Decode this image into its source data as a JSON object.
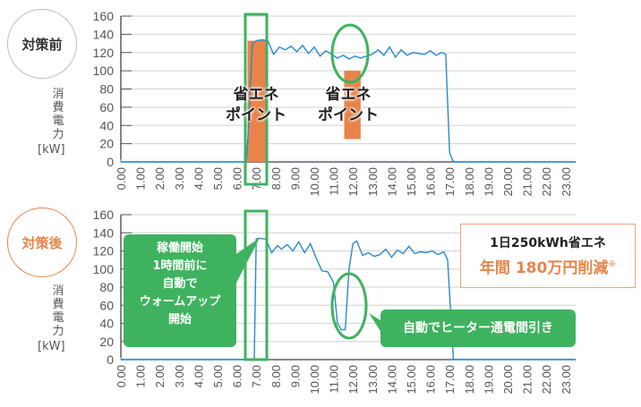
{
  "top_panel": {
    "badge": "対策前",
    "badge_color": "#333333",
    "badge_border": "#bbbbbb",
    "ylabel_chars": [
      "消",
      "費",
      "電",
      "力"
    ],
    "unit": "[kW]",
    "point_label_1": [
      "省エネ",
      "ポイント"
    ],
    "point_label_2": [
      "省エネ",
      "ポイント"
    ]
  },
  "bottom_panel": {
    "badge": "対策後",
    "badge_color": "#e8844a",
    "badge_border": "#e8844a",
    "ylabel_chars": [
      "消",
      "費",
      "電",
      "力"
    ],
    "unit": "[kW]",
    "warmup_callout": [
      "稼働開始",
      "1時間前に",
      "自動で",
      "ウォームアップ",
      "開始"
    ],
    "heater_callout": "自動でヒーター通電間引き"
  },
  "savings_box": {
    "line1": "1日250kWh省エネ",
    "line2": "年間 180万円削減",
    "note_mark": "※"
  },
  "colors": {
    "line": "#2a8ac8",
    "highlight_orange": "#e8844a",
    "highlight_green": "#3fb25f",
    "grid": "#d9d9d9"
  },
  "chart_data": [
    {
      "type": "line",
      "title": "対策前",
      "xlabel": "",
      "ylabel": "消費電力 [kW]",
      "ylim": [
        0,
        160
      ],
      "yticks": [
        0,
        20,
        40,
        60,
        80,
        100,
        120,
        140,
        160
      ],
      "grid": true,
      "categories": [
        "0.00",
        "1.00",
        "2.00",
        "3.00",
        "4.00",
        "5.00",
        "6.00",
        "7.00",
        "8.00",
        "9.00",
        "10.00",
        "11.00",
        "12.00",
        "13.00",
        "14.00",
        "15.00",
        "16.00",
        "17.00",
        "18.00",
        "19.00",
        "20.00",
        "21.00",
        "22.00",
        "23.00"
      ],
      "series": [
        {
          "name": "消費電力",
          "x": [
            0,
            6.5,
            6.6,
            6.8,
            7.0,
            7.3,
            7.6,
            7.9,
            8.2,
            8.5,
            8.8,
            9.1,
            9.4,
            9.7,
            10.0,
            10.3,
            10.6,
            10.9,
            11.2,
            11.5,
            11.8,
            12.1,
            12.4,
            12.7,
            13.0,
            13.3,
            13.6,
            13.9,
            14.2,
            14.5,
            14.8,
            15.1,
            15.4,
            15.7,
            16.0,
            16.3,
            16.6,
            16.8,
            17.0,
            17.2,
            23.5
          ],
          "values": [
            0,
            0,
            40,
            130,
            133,
            134,
            133,
            118,
            126,
            123,
            127,
            121,
            128,
            119,
            126,
            116,
            122,
            118,
            114,
            117,
            113,
            116,
            114,
            116,
            118,
            123,
            117,
            126,
            115,
            123,
            117,
            120,
            119,
            118,
            122,
            117,
            120,
            118,
            10,
            0,
            0
          ]
        }
      ],
      "annotations": [
        {
          "text": "省エネポイント",
          "x_range": [
            6.6,
            7.6
          ],
          "highlight": "orange bar 0-133",
          "frame": "green rectangle"
        },
        {
          "text": "省エネポイント",
          "x_range": [
            11.5,
            12.4
          ],
          "highlight": "orange bar 25-100",
          "frame": "green ellipse"
        }
      ]
    },
    {
      "type": "line",
      "title": "対策後",
      "xlabel": "",
      "ylabel": "消費電力 [kW]",
      "ylim": [
        0,
        160
      ],
      "yticks": [
        0,
        20,
        40,
        60,
        80,
        100,
        120,
        140,
        160
      ],
      "grid": true,
      "categories": [
        "0.00",
        "1.00",
        "2.00",
        "3.00",
        "4.00",
        "5.00",
        "6.00",
        "7.00",
        "8.00",
        "9.00",
        "10.00",
        "11.00",
        "12.00",
        "13.00",
        "14.00",
        "15.00",
        "16.00",
        "17.00",
        "18.00",
        "19.00",
        "20.00",
        "21.00",
        "22.00",
        "23.00"
      ],
      "series": [
        {
          "name": "消費電力",
          "x": [
            0,
            6.9,
            7.0,
            7.1,
            7.5,
            7.8,
            8.1,
            8.3,
            8.6,
            8.9,
            9.2,
            9.5,
            9.8,
            10.1,
            10.4,
            10.7,
            11.0,
            11.2,
            11.4,
            11.6,
            11.8,
            12.0,
            12.2,
            12.5,
            12.8,
            13.1,
            13.4,
            13.7,
            14.0,
            14.3,
            14.6,
            14.9,
            15.2,
            15.5,
            15.8,
            16.1,
            16.4,
            16.7,
            16.9,
            17.2,
            23.5
          ],
          "values": [
            0,
            0,
            133,
            134,
            133,
            118,
            126,
            122,
            127,
            120,
            130,
            118,
            128,
            112,
            98,
            97,
            85,
            40,
            33,
            33,
            100,
            128,
            131,
            115,
            118,
            114,
            116,
            122,
            113,
            121,
            117,
            125,
            117,
            119,
            118,
            120,
            116,
            119,
            110,
            0,
            0
          ]
        }
      ],
      "annotations": [
        {
          "text": "稼働開始1時間前に自動でウォームアップ開始",
          "x_range": [
            6.6,
            7.6
          ]
        },
        {
          "text": "自動でヒーター通電間引き",
          "x_range": [
            11.0,
            12.2
          ]
        },
        {
          "text": "1日250kWh省エネ 年間180万円削減※"
        }
      ]
    }
  ]
}
